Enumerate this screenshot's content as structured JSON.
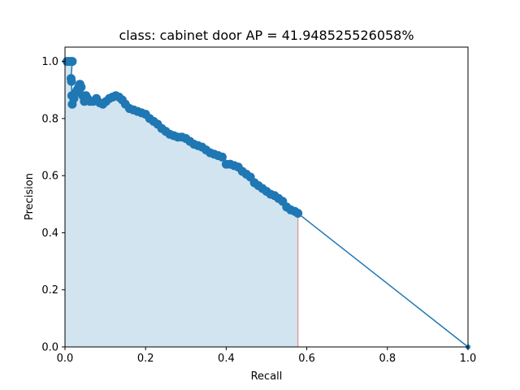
{
  "chart_data": {
    "type": "line",
    "title": "class: cabinet door AP = 41.948525526058%",
    "xlabel": "Recall",
    "ylabel": "Precision",
    "xlim": [
      0,
      1
    ],
    "ylim": [
      0,
      1.05
    ],
    "xticks": [
      "0.0",
      "0.2",
      "0.4",
      "0.6",
      "0.8",
      "1.0"
    ],
    "yticks": [
      "0.0",
      "0.2",
      "0.4",
      "0.6",
      "0.8",
      "1.0"
    ],
    "grid": false,
    "colors": {
      "line": "#1f77b4",
      "fill": "#1f77b4",
      "recall_marker": "#d62728"
    },
    "recall_cutoff": 0.578,
    "series": [
      {
        "points": [
          [
            0.0,
            1.0
          ],
          [
            0.005,
            1.0
          ],
          [
            0.01,
            1.0
          ],
          [
            0.015,
            1.0
          ],
          [
            0.018,
            1.0
          ],
          [
            0.015,
            0.94
          ],
          [
            0.016,
            0.93
          ],
          [
            0.017,
            0.88
          ],
          [
            0.018,
            0.85
          ],
          [
            0.022,
            0.87
          ],
          [
            0.026,
            0.89
          ],
          [
            0.03,
            0.9
          ],
          [
            0.034,
            0.91
          ],
          [
            0.037,
            0.92
          ],
          [
            0.04,
            0.91
          ],
          [
            0.044,
            0.88
          ],
          [
            0.048,
            0.86
          ],
          [
            0.052,
            0.88
          ],
          [
            0.056,
            0.87
          ],
          [
            0.062,
            0.86
          ],
          [
            0.07,
            0.86
          ],
          [
            0.078,
            0.87
          ],
          [
            0.086,
            0.855
          ],
          [
            0.094,
            0.85
          ],
          [
            0.102,
            0.86
          ],
          [
            0.11,
            0.87
          ],
          [
            0.118,
            0.875
          ],
          [
            0.126,
            0.88
          ],
          [
            0.134,
            0.875
          ],
          [
            0.142,
            0.865
          ],
          [
            0.15,
            0.85
          ],
          [
            0.16,
            0.835
          ],
          [
            0.17,
            0.83
          ],
          [
            0.18,
            0.825
          ],
          [
            0.19,
            0.82
          ],
          [
            0.2,
            0.815
          ],
          [
            0.21,
            0.8
          ],
          [
            0.22,
            0.79
          ],
          [
            0.23,
            0.78
          ],
          [
            0.24,
            0.765
          ],
          [
            0.25,
            0.755
          ],
          [
            0.26,
            0.745
          ],
          [
            0.27,
            0.74
          ],
          [
            0.28,
            0.735
          ],
          [
            0.29,
            0.735
          ],
          [
            0.3,
            0.73
          ],
          [
            0.31,
            0.72
          ],
          [
            0.32,
            0.71
          ],
          [
            0.33,
            0.705
          ],
          [
            0.34,
            0.7
          ],
          [
            0.35,
            0.69
          ],
          [
            0.36,
            0.68
          ],
          [
            0.37,
            0.675
          ],
          [
            0.38,
            0.67
          ],
          [
            0.39,
            0.665
          ],
          [
            0.4,
            0.64
          ],
          [
            0.41,
            0.64
          ],
          [
            0.42,
            0.635
          ],
          [
            0.43,
            0.63
          ],
          [
            0.44,
            0.615
          ],
          [
            0.45,
            0.605
          ],
          [
            0.46,
            0.595
          ],
          [
            0.47,
            0.575
          ],
          [
            0.48,
            0.565
          ],
          [
            0.49,
            0.555
          ],
          [
            0.5,
            0.545
          ],
          [
            0.51,
            0.535
          ],
          [
            0.52,
            0.53
          ],
          [
            0.53,
            0.52
          ],
          [
            0.54,
            0.51
          ],
          [
            0.55,
            0.49
          ],
          [
            0.56,
            0.48
          ],
          [
            0.57,
            0.475
          ],
          [
            0.578,
            0.468
          ],
          [
            1.0,
            0.0
          ]
        ]
      }
    ]
  }
}
